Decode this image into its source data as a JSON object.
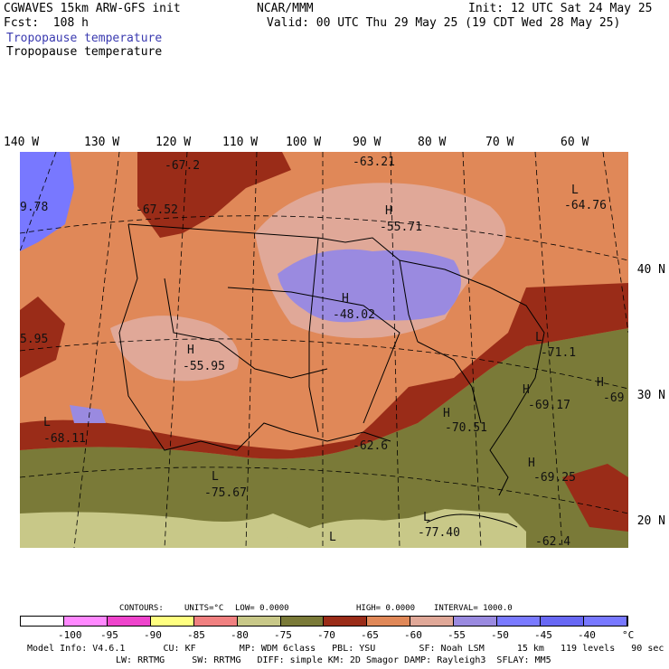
{
  "header": {
    "model_line": "CGWAVES 15km ARW-GFS init",
    "org": "NCAR/MMM",
    "init": "Init: 12 UTC Sat 24 May 25",
    "fcst": "Fcst:  108 h",
    "valid": "Valid: 00 UTC Thu 29 May 25 (19 CDT Wed 28 May 25)",
    "field_title_1": "Tropopause temperature",
    "field_title_2": "Tropopause temperature"
  },
  "lon_labels": [
    "140 W",
    "130 W",
    "120 W",
    "110 W",
    "100 W",
    "90 W",
    "80 W",
    "70 W",
    "60 W"
  ],
  "lat_labels": [
    "40 N",
    "30 N",
    "20 N"
  ],
  "map_labels": [
    {
      "t": "-67.2"
    },
    {
      "t": "-63.21"
    },
    {
      "t": "L"
    },
    {
      "t": "-64.76"
    },
    {
      "t": "-67.52"
    },
    {
      "t": "H"
    },
    {
      "t": "-55.71"
    },
    {
      "t": "9.78"
    },
    {
      "t": "H"
    },
    {
      "t": "-48.02"
    },
    {
      "t": "5.95"
    },
    {
      "t": "H"
    },
    {
      "t": "-55.95"
    },
    {
      "t": "L"
    },
    {
      "t": "-71.1"
    },
    {
      "t": "H"
    },
    {
      "t": "-69.17"
    },
    {
      "t": "H"
    },
    {
      "t": "-69"
    },
    {
      "t": "L"
    },
    {
      "t": "-68.11"
    },
    {
      "t": "H"
    },
    {
      "t": "-70.51"
    },
    {
      "t": "-62.6"
    },
    {
      "t": "L"
    },
    {
      "t": "-75.67"
    },
    {
      "t": "H"
    },
    {
      "t": "-69.25"
    },
    {
      "t": "L"
    },
    {
      "t": "-77.40"
    },
    {
      "t": "L"
    },
    {
      "t": "-62.4"
    }
  ],
  "contour_info": {
    "contours": "CONTOURS:",
    "units": "UNITS=°C",
    "low": "LOW=  0.0000",
    "high": "HIGH=  0.0000",
    "interval": "INTERVAL=    1000.0"
  },
  "colorbar": {
    "colors": [
      "#ffffff",
      "#ff88ff",
      "#ee44cc",
      "#ffff80",
      "#f08080",
      "#c8c888",
      "#7a7a38",
      "#9a2c18",
      "#e08858",
      "#e0a898",
      "#9a8ae0",
      "#7a7aff",
      "#6868f4",
      "#7878ff"
    ],
    "ticks": [
      "-100",
      "-95",
      "-90",
      "-85",
      "-80",
      "-75",
      "-70",
      "-65",
      "-60",
      "-55",
      "-50",
      "-45",
      "-40",
      "°C"
    ]
  },
  "footer": {
    "line1": "Model Info: V4.6.1       CU: KF        MP: WDM 6class   PBL: YSU        SF: Noah LSM      15 km   119 levels   90 sec",
    "line2": "LW: RRTMG     SW: RRTMG   DIFF: simple KM: 2D Smagor DAMP: Rayleigh3  SFLAY: MM5"
  }
}
